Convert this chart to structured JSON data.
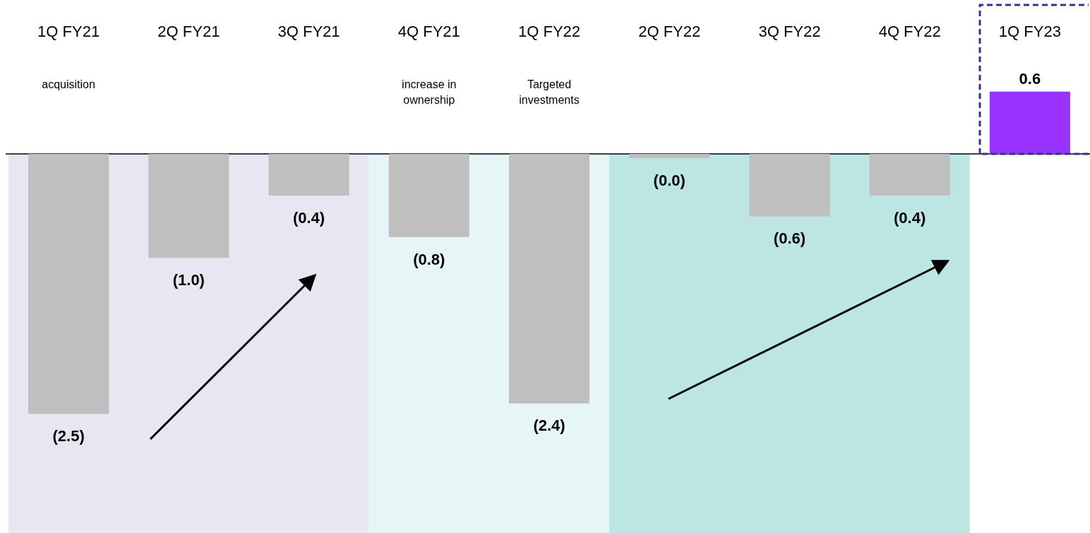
{
  "chart_data": {
    "type": "bar",
    "categories": [
      "1Q FY21",
      "2Q FY21",
      "3Q FY21",
      "4Q FY21",
      "1Q FY22",
      "2Q FY22",
      "3Q FY22",
      "4Q FY22",
      "1Q FY23"
    ],
    "values": [
      -2.5,
      -1.0,
      -0.4,
      -0.8,
      -2.4,
      -0.04,
      -0.6,
      -0.4,
      0.6
    ],
    "value_labels": [
      "(2.5)",
      "(1.0)",
      "(0.4)",
      "(0.8)",
      "(2.4)",
      "(0.0)",
      "(0.6)",
      "(0.4)",
      "0.6"
    ],
    "colors": [
      "#bfbfbf",
      "#bfbfbf",
      "#bfbfbf",
      "#bfbfbf",
      "#bfbfbf",
      "#bfbfbf",
      "#bfbfbf",
      "#bfbfbf",
      "#9933ff"
    ],
    "annotations": [
      "acquisition",
      "increase in ownership",
      "Targeted investments"
    ],
    "bands": [
      {
        "axis": "x",
        "from": "1Q FY21",
        "to": "3Q FY21",
        "color": "#e9e6f2"
      },
      {
        "axis": "x",
        "from": "4Q FY21",
        "to": "1Q FY22",
        "color": "#e6f5f5"
      },
      {
        "axis": "x",
        "from": "2Q FY22",
        "to": "4Q FY22",
        "color": "#bce5e4"
      }
    ],
    "tick_labels": "x",
    "grid": false,
    "legend": false
  }
}
